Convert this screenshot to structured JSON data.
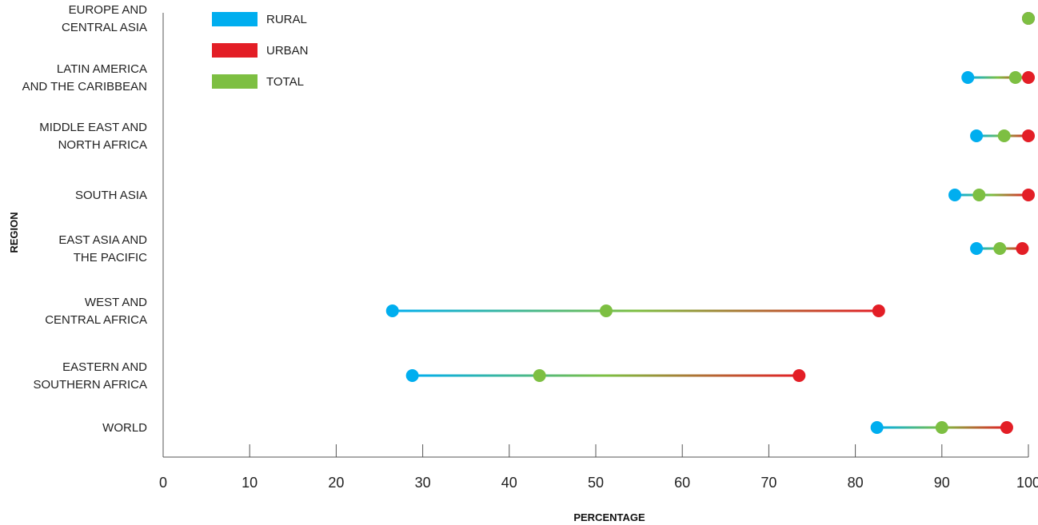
{
  "chart_data": {
    "type": "dumbbell",
    "xlabel": "PERCENTAGE",
    "ylabel": "REGION",
    "xlim": [
      0,
      100
    ],
    "xticks": [
      0,
      10,
      20,
      30,
      40,
      50,
      60,
      70,
      80,
      90,
      100
    ],
    "grid": false,
    "legend_position": "top-left",
    "categories": [
      [
        "EUROPE AND",
        "CENTRAL ASIA"
      ],
      [
        "LATIN AMERICA",
        "AND THE CARIBBEAN"
      ],
      [
        "MIDDLE EAST AND",
        "NORTH AFRICA"
      ],
      [
        "SOUTH ASIA"
      ],
      [
        "EAST ASIA AND",
        "THE PACIFIC"
      ],
      [
        "WEST AND",
        "CENTRAL AFRICA"
      ],
      [
        "EASTERN AND",
        "SOUTHERN AFRICA"
      ],
      [
        "WORLD"
      ]
    ],
    "series": [
      {
        "name": "RURAL",
        "color": "#00aeef",
        "values": [
          100,
          93,
          94,
          91.5,
          94,
          26.5,
          28.8,
          82.5
        ]
      },
      {
        "name": "URBAN",
        "color": "#e31e26",
        "values": [
          100,
          100,
          100,
          100,
          99.3,
          82.7,
          73.5,
          97.5
        ]
      },
      {
        "name": "TOTAL",
        "color": "#7dbf42",
        "values": [
          100,
          98.5,
          97.2,
          94.3,
          96.7,
          51.2,
          43.5,
          90
        ]
      }
    ]
  }
}
